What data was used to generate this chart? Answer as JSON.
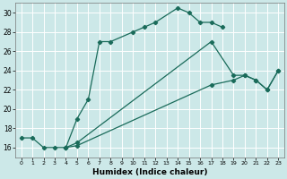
{
  "xlabel": "Humidex (Indice chaleur)",
  "bg_color": "#cce8e8",
  "grid_color": "#ffffff",
  "line_color": "#1a6b5a",
  "xlim": [
    -0.5,
    23.5
  ],
  "ylim": [
    15.0,
    31.0
  ],
  "yticks": [
    16,
    18,
    20,
    22,
    24,
    26,
    28,
    30
  ],
  "xticks": [
    0,
    1,
    2,
    3,
    4,
    5,
    6,
    7,
    8,
    9,
    10,
    11,
    12,
    13,
    14,
    15,
    16,
    17,
    18,
    19,
    20,
    21,
    22,
    23
  ],
  "line1_x": [
    0,
    1,
    2,
    3,
    4,
    5,
    6,
    7,
    8,
    10,
    11,
    12,
    14,
    15,
    16,
    17,
    18
  ],
  "line1_y": [
    17,
    17,
    16,
    16,
    16,
    19,
    21,
    27,
    27,
    28,
    28.5,
    29,
    30.5,
    30,
    29,
    29,
    28.5
  ],
  "line2_x": [
    4,
    5,
    17,
    19,
    20,
    21,
    22,
    23
  ],
  "line2_y": [
    16,
    16.2,
    22.5,
    23.0,
    23.5,
    23.0,
    22.0,
    24.0
  ],
  "line3_x": [
    4,
    5,
    17,
    19,
    20,
    21,
    22,
    23
  ],
  "line3_y": [
    16,
    16.5,
    27.0,
    23.5,
    23.5,
    23.0,
    22.0,
    24.0
  ]
}
